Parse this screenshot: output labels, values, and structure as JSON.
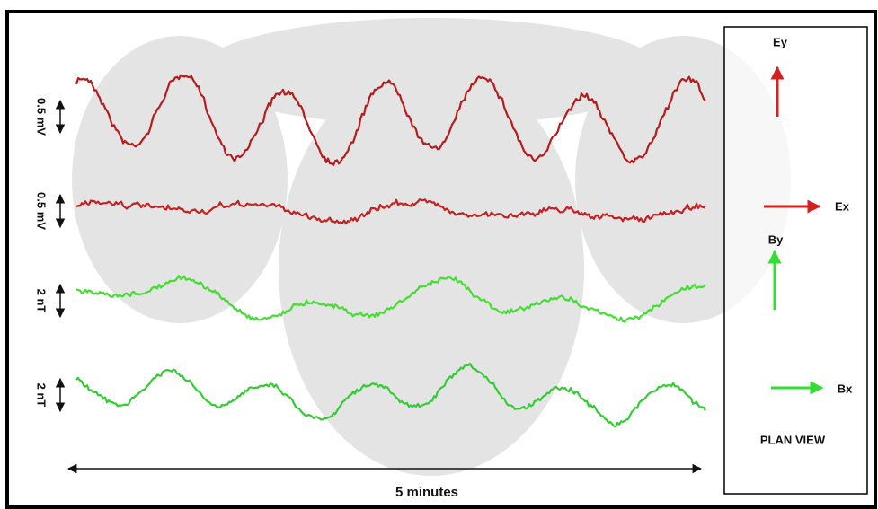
{
  "traces": [
    {
      "label": "0.5 mV"
    },
    {
      "label": "0.5 mV"
    },
    {
      "label": "2 nT"
    },
    {
      "label": "2 nT"
    }
  ],
  "time_label": "5 minutes",
  "plan_view": {
    "title": "PLAN VIEW",
    "components": [
      "Ey",
      "Ex",
      "By",
      "Bx"
    ]
  }
}
